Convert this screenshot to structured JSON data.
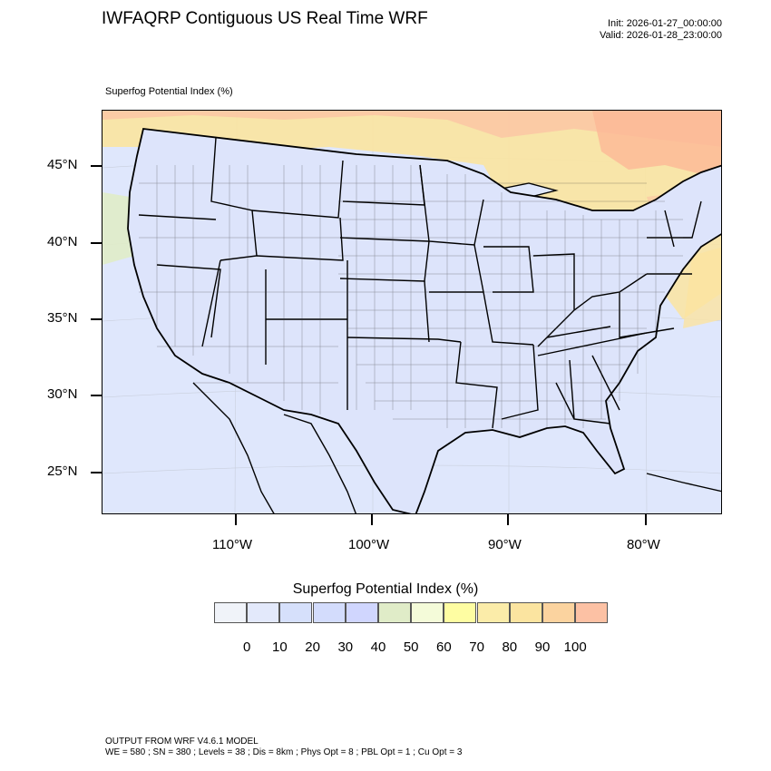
{
  "header": {
    "title": "IWFAQRP Contiguous US Real Time WRF",
    "init": "Init: 2026-01-27_00:00:00",
    "valid": "Valid: 2026-01-28_23:00:00"
  },
  "map": {
    "subtitle": "Superfog Potential Index   (%)",
    "lat_labels": [
      "45°N",
      "40°N",
      "35°N",
      "30°N",
      "25°N"
    ],
    "lon_labels": [
      "110°W",
      "100°W",
      "90°W",
      "80°W"
    ]
  },
  "colorbar": {
    "title": "Superfog Potential Index  (%)",
    "colors": [
      "#f0f3f9",
      "#e3e9fb",
      "#d6e0fb",
      "#d3dcfc",
      "#d0d6fe",
      "#e0ecc8",
      "#f4fbd9",
      "#fefda2",
      "#fbeca9",
      "#fbe4a0",
      "#fbd39f",
      "#fcc1a4"
    ],
    "labels": [
      "0",
      "10",
      "20",
      "30",
      "40",
      "50",
      "60",
      "70",
      "80",
      "90",
      "100"
    ]
  },
  "footer": {
    "line1": "OUTPUT FROM WRF V4.6.1 MODEL",
    "line2": "WE = 580 ; SN = 380 ; Levels = 38 ; Dis = 8km ; Phys Opt = 8 ; PBL Opt = 1 ; Cu Opt = 3"
  }
}
